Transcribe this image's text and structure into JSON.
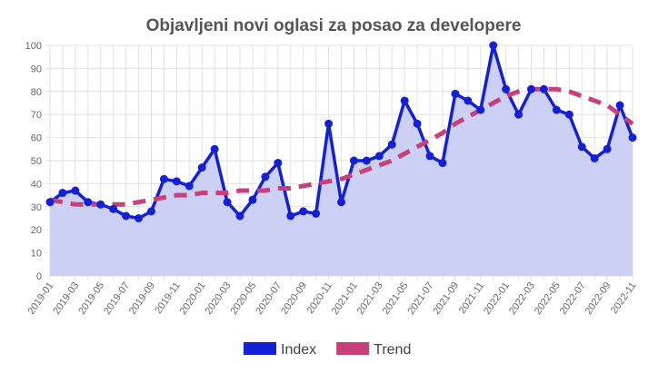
{
  "chart_data": {
    "type": "line",
    "title": "Objavljeni novi oglasi za posao za developere",
    "ylim": [
      0,
      100
    ],
    "y_ticks": [
      0,
      10,
      20,
      30,
      40,
      50,
      60,
      70,
      80,
      90,
      100
    ],
    "x_tick_labels": [
      "2019-01",
      "2019-03",
      "2019-05",
      "2019-07",
      "2019-09",
      "2019-11",
      "2020-01",
      "2020-03",
      "2020-05",
      "2020-07",
      "2020-09",
      "2020-11",
      "2021-01",
      "2021-03",
      "2021-05",
      "2021-07",
      "2021-09",
      "2021-11",
      "2022-01",
      "2022-03",
      "2022-05",
      "2022-07",
      "2022-09",
      "2022-11"
    ],
    "x": [
      "2019-01",
      "2019-02",
      "2019-03",
      "2019-04",
      "2019-05",
      "2019-06",
      "2019-07",
      "2019-08",
      "2019-09",
      "2019-10",
      "2019-11",
      "2019-12",
      "2020-01",
      "2020-02",
      "2020-03",
      "2020-04",
      "2020-05",
      "2020-06",
      "2020-07",
      "2020-08",
      "2020-09",
      "2020-10",
      "2020-11",
      "2020-12",
      "2021-01",
      "2021-02",
      "2021-03",
      "2021-04",
      "2021-05",
      "2021-06",
      "2021-07",
      "2021-08",
      "2021-09",
      "2021-10",
      "2021-11",
      "2021-12",
      "2022-01",
      "2022-02",
      "2022-03",
      "2022-04",
      "2022-05",
      "2022-06",
      "2022-07",
      "2022-08",
      "2022-09",
      "2022-10",
      "2022-11"
    ],
    "grid": true,
    "legend_position": "bottom",
    "series": [
      {
        "name": "Index",
        "kind": "line-area",
        "color": "#1320d6",
        "fill": "#ccd0f5",
        "values": [
          32,
          36,
          37,
          32,
          31,
          29,
          26,
          25,
          28,
          42,
          41,
          39,
          47,
          55,
          32,
          26,
          33,
          43,
          49,
          26,
          28,
          27,
          66,
          32,
          50,
          50,
          52,
          57,
          76,
          66,
          52,
          49,
          79,
          76,
          72,
          100,
          81,
          70,
          81,
          81,
          72,
          70,
          56,
          51,
          55,
          74,
          60
        ]
      },
      {
        "name": "Trend",
        "kind": "dashed-line",
        "color": "#c8407a",
        "values": [
          33,
          32,
          31,
          31,
          31,
          31,
          31,
          32,
          33,
          34,
          35,
          35,
          36,
          36,
          36,
          37,
          37,
          37,
          38,
          38,
          39,
          40,
          41,
          42,
          44,
          46,
          48,
          50,
          53,
          56,
          59,
          62,
          66,
          69,
          72,
          75,
          78,
          80,
          81,
          81,
          81,
          80,
          78,
          76,
          74,
          70,
          66
        ]
      }
    ]
  }
}
